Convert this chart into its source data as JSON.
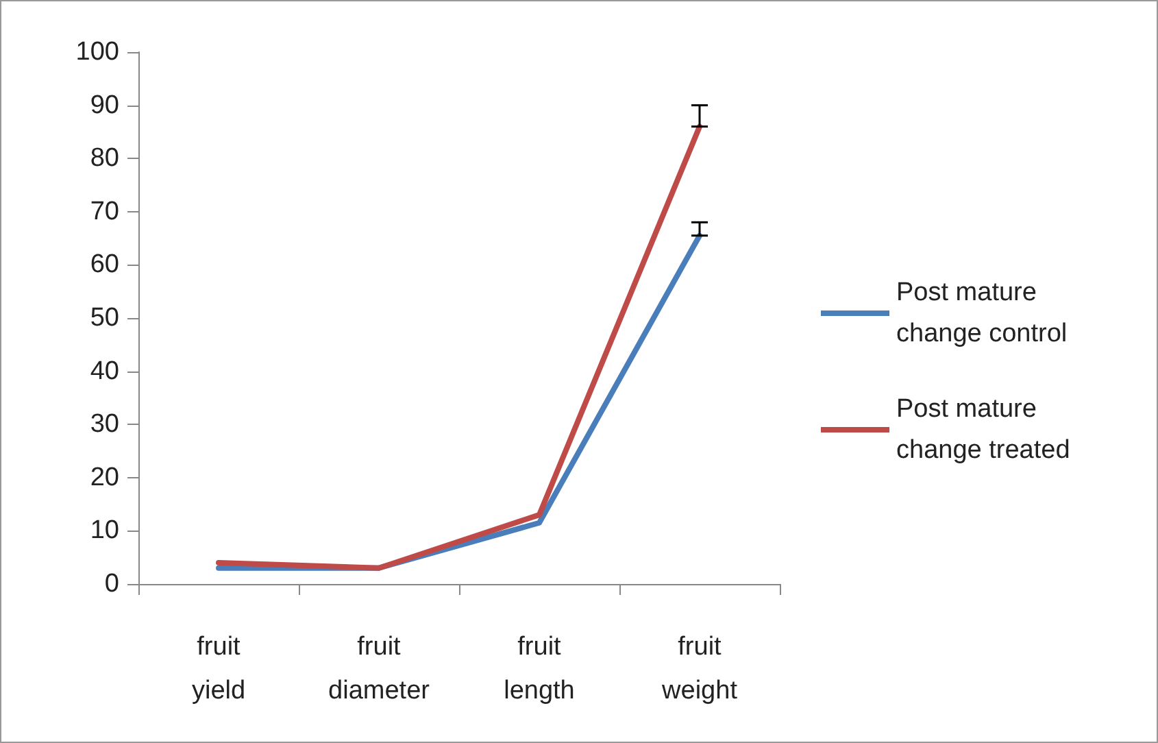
{
  "chart_data": {
    "type": "line",
    "categories": [
      "fruit yield",
      "fruit diameter",
      "fruit length",
      "fruit weight"
    ],
    "series": [
      {
        "name": "Post mature change control",
        "color": "#4a7ebb",
        "values": [
          3,
          3,
          11.5,
          65.5
        ],
        "errors": [
          null,
          null,
          null,
          [
            65.5,
            68
          ]
        ]
      },
      {
        "name": "Post mature change treated",
        "color": "#be4b48",
        "values": [
          4,
          3,
          13,
          86
        ],
        "errors": [
          null,
          null,
          null,
          [
            86,
            90
          ]
        ]
      }
    ],
    "ylim": [
      0,
      100
    ],
    "yticks": [
      0,
      10,
      20,
      30,
      40,
      50,
      60,
      70,
      80,
      90,
      100
    ],
    "grid": false,
    "legend": "right",
    "marker": "none"
  }
}
